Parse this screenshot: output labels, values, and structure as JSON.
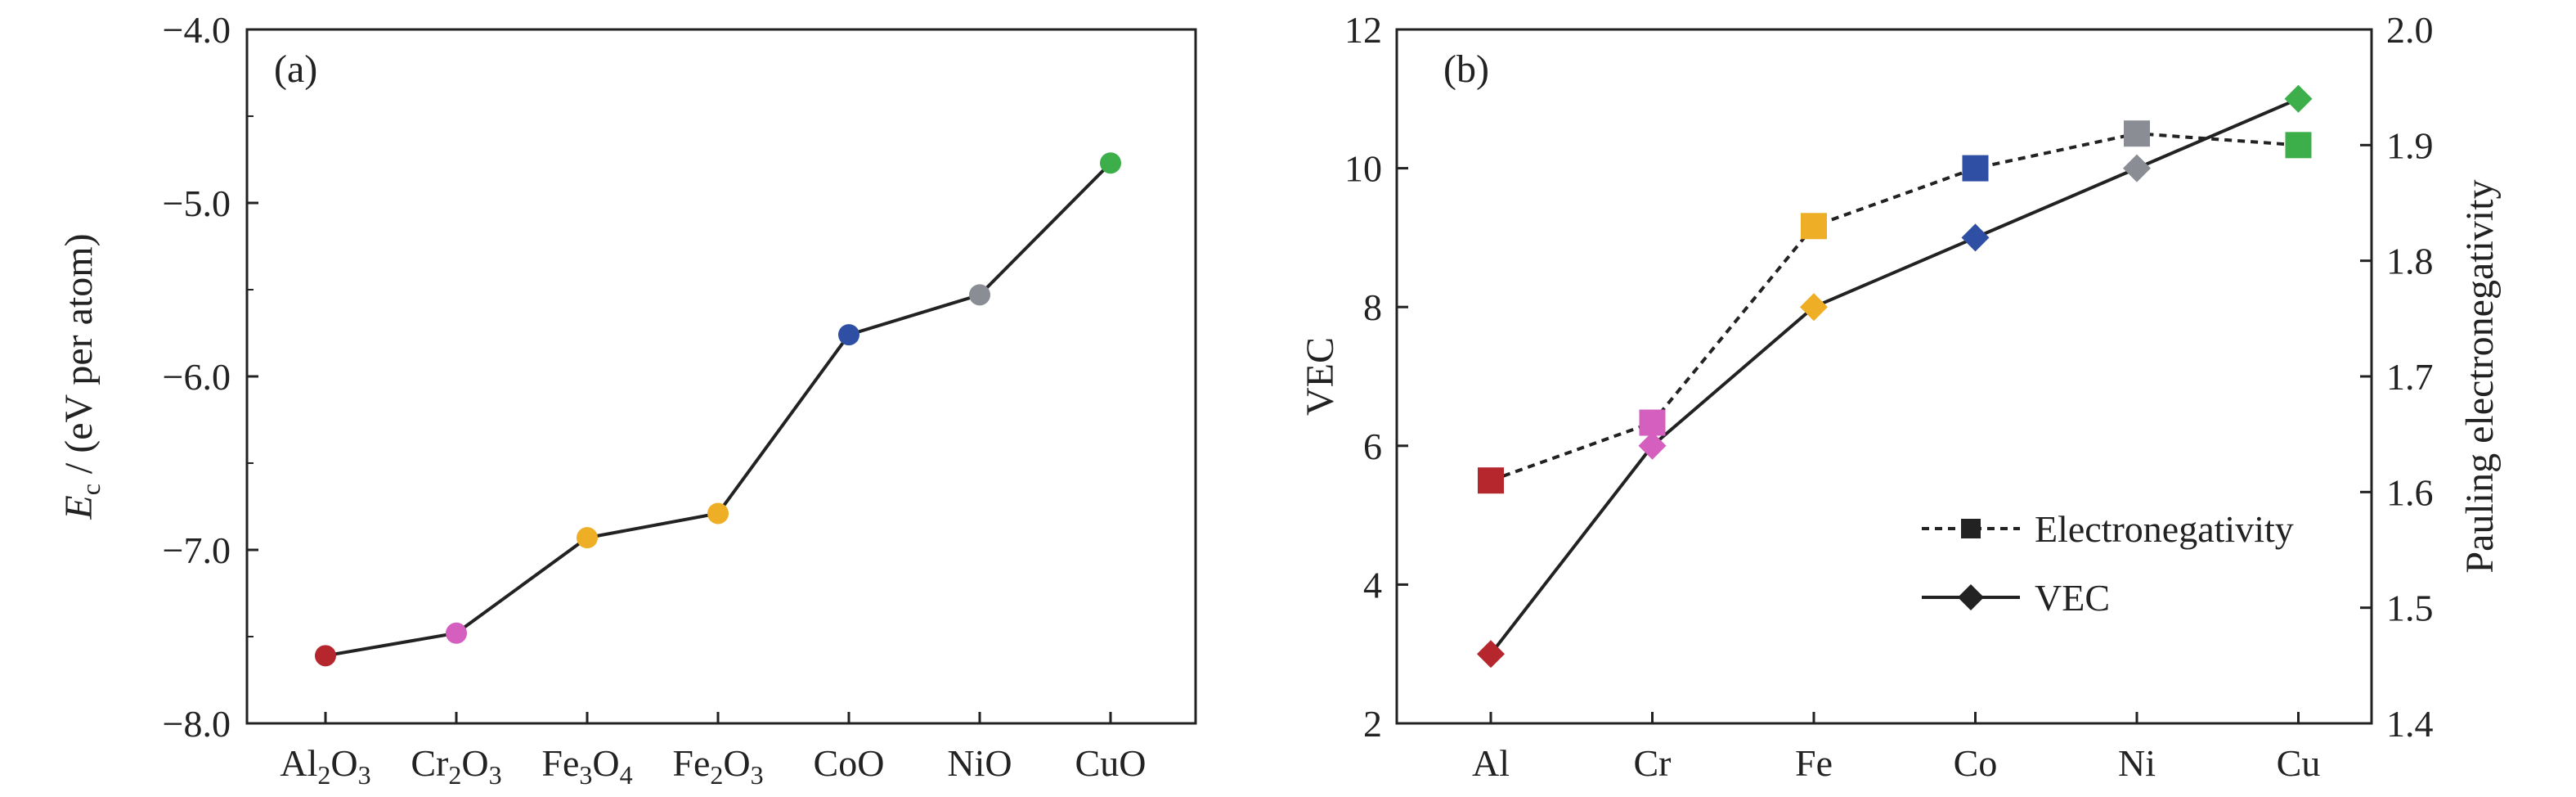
{
  "chart_data": [
    {
      "type": "line",
      "panel_label": "(a)",
      "categories": [
        {
          "base": "Al",
          "sub1": "2",
          "mid": "O",
          "sub2": "3"
        },
        {
          "base": "Cr",
          "sub1": "2",
          "mid": "O",
          "sub2": "3"
        },
        {
          "base": "Fe",
          "sub1": "3",
          "mid": "O",
          "sub2": "4"
        },
        {
          "base": "Fe",
          "sub1": "2",
          "mid": "O",
          "sub2": "3"
        },
        {
          "base": "CoO",
          "sub1": "",
          "mid": "",
          "sub2": ""
        },
        {
          "base": "NiO",
          "sub1": "",
          "mid": "",
          "sub2": ""
        },
        {
          "base": "CuO",
          "sub1": "",
          "mid": "",
          "sub2": ""
        }
      ],
      "values": [
        -7.61,
        -7.48,
        -6.93,
        -6.79,
        -5.76,
        -5.53,
        -4.77
      ],
      "point_colors": [
        "#b5272d",
        "#d45fbf",
        "#eeae25",
        "#eeae25",
        "#2f4fa4",
        "#8a8d93",
        "#3cae4a"
      ],
      "ylabel": {
        "italic": "E",
        "sub": "c",
        "rest": " / (eV per atom)"
      },
      "ylim": [
        -8.0,
        -4.0
      ],
      "yticks": [
        "-8.0",
        "-7.0",
        "-6.0",
        "-5.0",
        "-4.0"
      ],
      "grid": false
    },
    {
      "type": "line",
      "panel_label": "(b)",
      "categories": [
        "Al",
        "Cr",
        "Fe",
        "Co",
        "Ni",
        "Cu"
      ],
      "series": [
        {
          "name": "Electronegativity",
          "axis": "right",
          "marker": "square",
          "line_style": "dashed",
          "values": [
            1.61,
            1.66,
            1.83,
            1.88,
            1.91,
            1.9
          ]
        },
        {
          "name": "VEC",
          "axis": "left",
          "marker": "diamond",
          "line_style": "solid",
          "values": [
            3,
            6,
            8,
            9,
            10,
            11
          ]
        }
      ],
      "point_colors": [
        "#b5272d",
        "#d45fbf",
        "#eeae25",
        "#2f4fa4",
        "#8a8d93",
        "#3cae4a"
      ],
      "ylabel_left": "VEC",
      "ylabel_right": "Pauling electronegativity",
      "ylim_left": [
        2,
        12
      ],
      "ylim_right": [
        1.4,
        2.0
      ],
      "yticks_left": [
        "2",
        "4",
        "6",
        "8",
        "10",
        "12"
      ],
      "yticks_right": [
        "1.4",
        "1.5",
        "1.6",
        "1.7",
        "1.8",
        "1.9",
        "2.0"
      ],
      "legend_position": "center-right",
      "grid": false
    }
  ]
}
